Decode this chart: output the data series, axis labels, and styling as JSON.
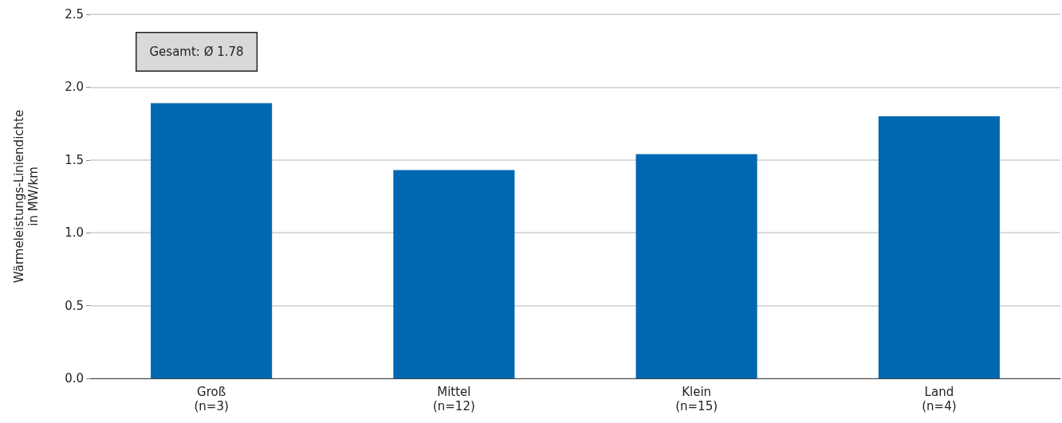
{
  "chart_data": {
    "type": "bar",
    "ylabel": "Wärmeleistungs-Liniendichte\nin MW/km",
    "categories": [
      "Groß\n(n=3)",
      "Mittel\n(n=12)",
      "Klein\n(n=15)",
      "Land\n(n=4)"
    ],
    "values": [
      1.89,
      1.43,
      1.54,
      1.8
    ],
    "color": "#0068b0",
    "ylim": [
      0,
      2.5
    ],
    "yticks": [
      {
        "value": 0,
        "label": "0.0"
      },
      {
        "value": 0.5,
        "label": "0.5"
      },
      {
        "value": 1,
        "label": "1.0"
      },
      {
        "value": 1.5,
        "label": "1.5"
      },
      {
        "value": 2,
        "label": "2.0"
      },
      {
        "value": 2.5,
        "label": "2.5"
      }
    ],
    "grid": "y",
    "annotations": [
      "Gesamt: Ø 1.78"
    ]
  }
}
